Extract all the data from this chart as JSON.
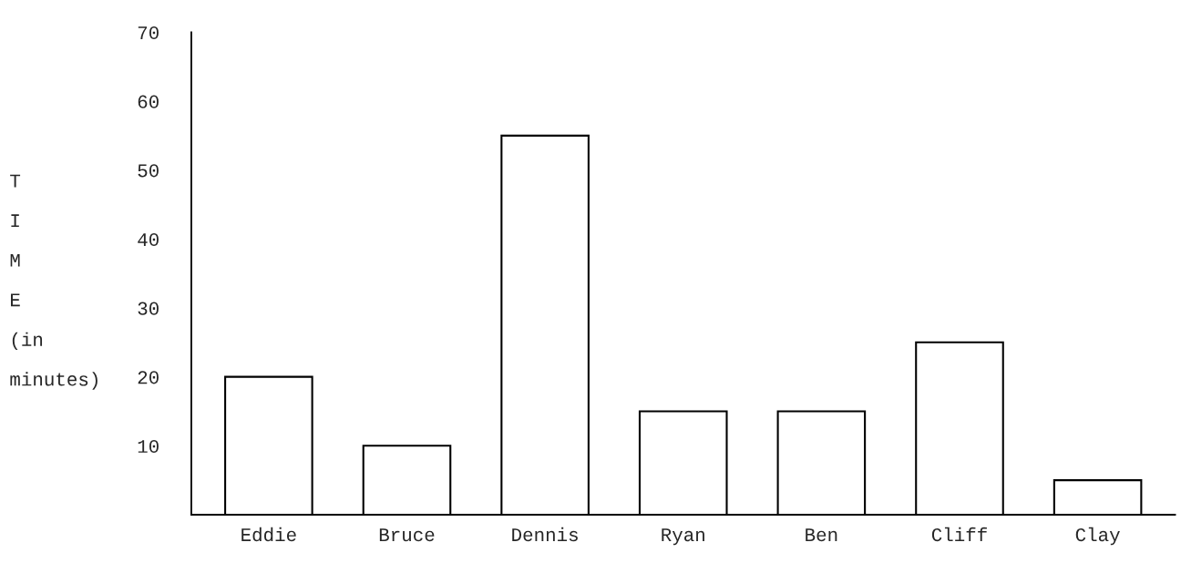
{
  "chart_data": {
    "type": "bar",
    "ylabel": "T\nI\nM\nE\n(in\nminutes)",
    "categories": [
      "Eddie",
      "Bruce",
      "Dennis",
      "Ryan",
      "Ben",
      "Cliff",
      "Clay"
    ],
    "values": [
      20,
      10,
      55,
      15,
      15,
      25,
      5
    ],
    "color": "#ffffff",
    "ylim": [
      0,
      70
    ],
    "yticks": [
      10,
      20,
      30,
      40,
      50,
      60,
      70
    ]
  }
}
